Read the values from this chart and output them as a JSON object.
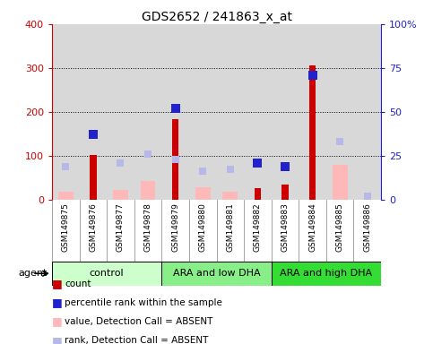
{
  "title": "GDS2652 / 241863_x_at",
  "samples": [
    "GSM149875",
    "GSM149876",
    "GSM149877",
    "GSM149878",
    "GSM149879",
    "GSM149880",
    "GSM149881",
    "GSM149882",
    "GSM149883",
    "GSM149884",
    "GSM149885",
    "GSM149886"
  ],
  "count_values": [
    null,
    102,
    null,
    null,
    183,
    null,
    null,
    25,
    35,
    305,
    null,
    null
  ],
  "value_absent": [
    18,
    null,
    22,
    42,
    null,
    28,
    18,
    null,
    null,
    null,
    80,
    null
  ],
  "percentile_rank_pct": [
    null,
    37,
    null,
    null,
    52,
    null,
    null,
    21,
    19,
    71,
    null,
    null
  ],
  "rank_absent_pct": [
    19,
    null,
    21,
    26,
    23,
    16,
    17,
    null,
    null,
    null,
    33,
    2
  ],
  "groups": [
    {
      "label": "control",
      "start": 0,
      "end": 3,
      "color": "#ccffcc"
    },
    {
      "label": "ARA and low DHA",
      "start": 4,
      "end": 7,
      "color": "#88ee88"
    },
    {
      "label": "ARA and high DHA",
      "start": 8,
      "end": 11,
      "color": "#33dd33"
    }
  ],
  "ylim_left": [
    0,
    400
  ],
  "ylim_right": [
    0,
    100
  ],
  "yticks_left": [
    0,
    100,
    200,
    300,
    400
  ],
  "yticks_right": [
    0,
    25,
    50,
    75,
    100
  ],
  "ytick_labels_right": [
    "0",
    "25",
    "50",
    "75",
    "100%"
  ],
  "color_count": "#cc0000",
  "color_percentile": "#2222cc",
  "color_value_absent": "#ffb8b8",
  "color_rank_absent": "#b8b8e8",
  "background_color": "#ffffff",
  "plot_bg_color": "#d8d8d8",
  "xtick_bg_color": "#d8d8d8"
}
